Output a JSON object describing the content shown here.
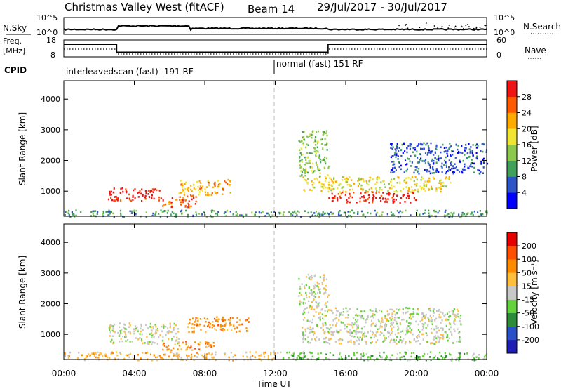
{
  "header": {
    "title": "Christmas Valley West (fitACF)",
    "beam": "Beam 14",
    "dates": "29/Jul/2017 - 30/Jul/2017"
  },
  "nsky_panel": {
    "left_label": "N.Sky",
    "right_label": "N.Search",
    "left_ticks": [
      "10^5",
      "10^0"
    ],
    "right_ticks": [
      "10^5",
      "10^0"
    ]
  },
  "freq_panel": {
    "left_label_1": "Freq.",
    "left_label_2": "[MHz]",
    "right_label": "Nave",
    "left_ticks": [
      "18",
      "8"
    ],
    "right_ticks": [
      "60",
      "0"
    ]
  },
  "cpid": {
    "label": "CPID",
    "segments": [
      {
        "text": "interleavedscan (fast) -191 RF",
        "start": 0,
        "end": 12
      },
      {
        "text": "normal (fast) 151 RF",
        "start": 12,
        "end": 24
      }
    ]
  },
  "power_panel": {
    "ylabel": "Slant Range [km]",
    "colorbar_label": "Power [dB]",
    "colorbar_ticks": [
      "28",
      "24",
      "20",
      "16",
      "12",
      "8",
      "4"
    ]
  },
  "velocity_panel": {
    "ylabel": "Slant Range [km]",
    "colorbar_label": "Velocity [m s⁻¹]",
    "colorbar_ticks": [
      "200",
      "100",
      "50",
      "15",
      "-15",
      "-50",
      "-100",
      "-200"
    ]
  },
  "x_axis": {
    "label": "Time UT",
    "ticks": [
      "00:00",
      "04:00",
      "08:00",
      "12:00",
      "16:00",
      "20:00",
      "00:00"
    ]
  },
  "colors": {
    "power": [
      "#0000ff",
      "#2d55c8",
      "#41a05a",
      "#8cc84b",
      "#f0e632",
      "#ffaa00",
      "#ff5a00",
      "#f01414"
    ],
    "velocity": [
      "#1e1eb4",
      "#2850c8",
      "#2d8c37",
      "#64d23c",
      "#c8c8c8",
      "#ffbe3c",
      "#ff8c00",
      "#ff5000",
      "#e60000"
    ]
  },
  "chart_data": {
    "type": "heatmap",
    "x_range_hours": [
      0,
      24
    ],
    "y_range_km": [
      180,
      4600
    ],
    "y_ticks_km": [
      1000,
      2000,
      3000,
      4000
    ],
    "x_ticks_hours": [
      0,
      4,
      8,
      12,
      16,
      20,
      24
    ],
    "nsky_scale": "log",
    "freq_levels": [
      {
        "start": 0,
        "end": 3,
        "mhz": 15.4
      },
      {
        "start": 3,
        "end": 15,
        "mhz": 10.8
      },
      {
        "start": 15,
        "end": 24,
        "mhz": 15.4
      }
    ],
    "power_regions": [
      {
        "t0": 2.5,
        "t1": 5.5,
        "r0": 700,
        "r1": 1150,
        "level": 7
      },
      {
        "t0": 5.5,
        "t1": 7.5,
        "r0": 500,
        "r1": 900,
        "level": 6
      },
      {
        "t0": 6.5,
        "t1": 9.5,
        "r0": 900,
        "r1": 1400,
        "level": 5
      },
      {
        "t0": 15.0,
        "t1": 20.0,
        "r0": 650,
        "r1": 1000,
        "level": 7
      },
      {
        "t0": 13.5,
        "t1": 22.0,
        "r0": 1000,
        "r1": 1500,
        "level": 4
      },
      {
        "t0": 13.3,
        "t1": 15.0,
        "r0": 1500,
        "r1": 3000,
        "level": 3
      },
      {
        "t0": 18.5,
        "t1": 24.0,
        "r0": 1600,
        "r1": 2600,
        "level": 1
      },
      {
        "t0": 0.0,
        "t1": 24.0,
        "r0": 180,
        "r1": 400,
        "level": 2
      }
    ],
    "velocity_regions": [
      {
        "t0": 2.5,
        "t1": 6.5,
        "r0": 700,
        "r1": 1400,
        "level": 4
      },
      {
        "t0": 7.0,
        "t1": 10.5,
        "r0": 1100,
        "r1": 1600,
        "level": 6
      },
      {
        "t0": 5.5,
        "t1": 8.5,
        "r0": 500,
        "r1": 800,
        "level": 6
      },
      {
        "t0": 13.5,
        "t1": 22.5,
        "r0": 700,
        "r1": 1900,
        "level": 4
      },
      {
        "t0": 13.3,
        "t1": 15.0,
        "r0": 1900,
        "r1": 3000,
        "level": 4
      },
      {
        "t0": 0.0,
        "t1": 12.0,
        "r0": 180,
        "r1": 450,
        "level": 5
      },
      {
        "t0": 12.0,
        "t1": 24.0,
        "r0": 180,
        "r1": 450,
        "level": 3
      }
    ]
  }
}
